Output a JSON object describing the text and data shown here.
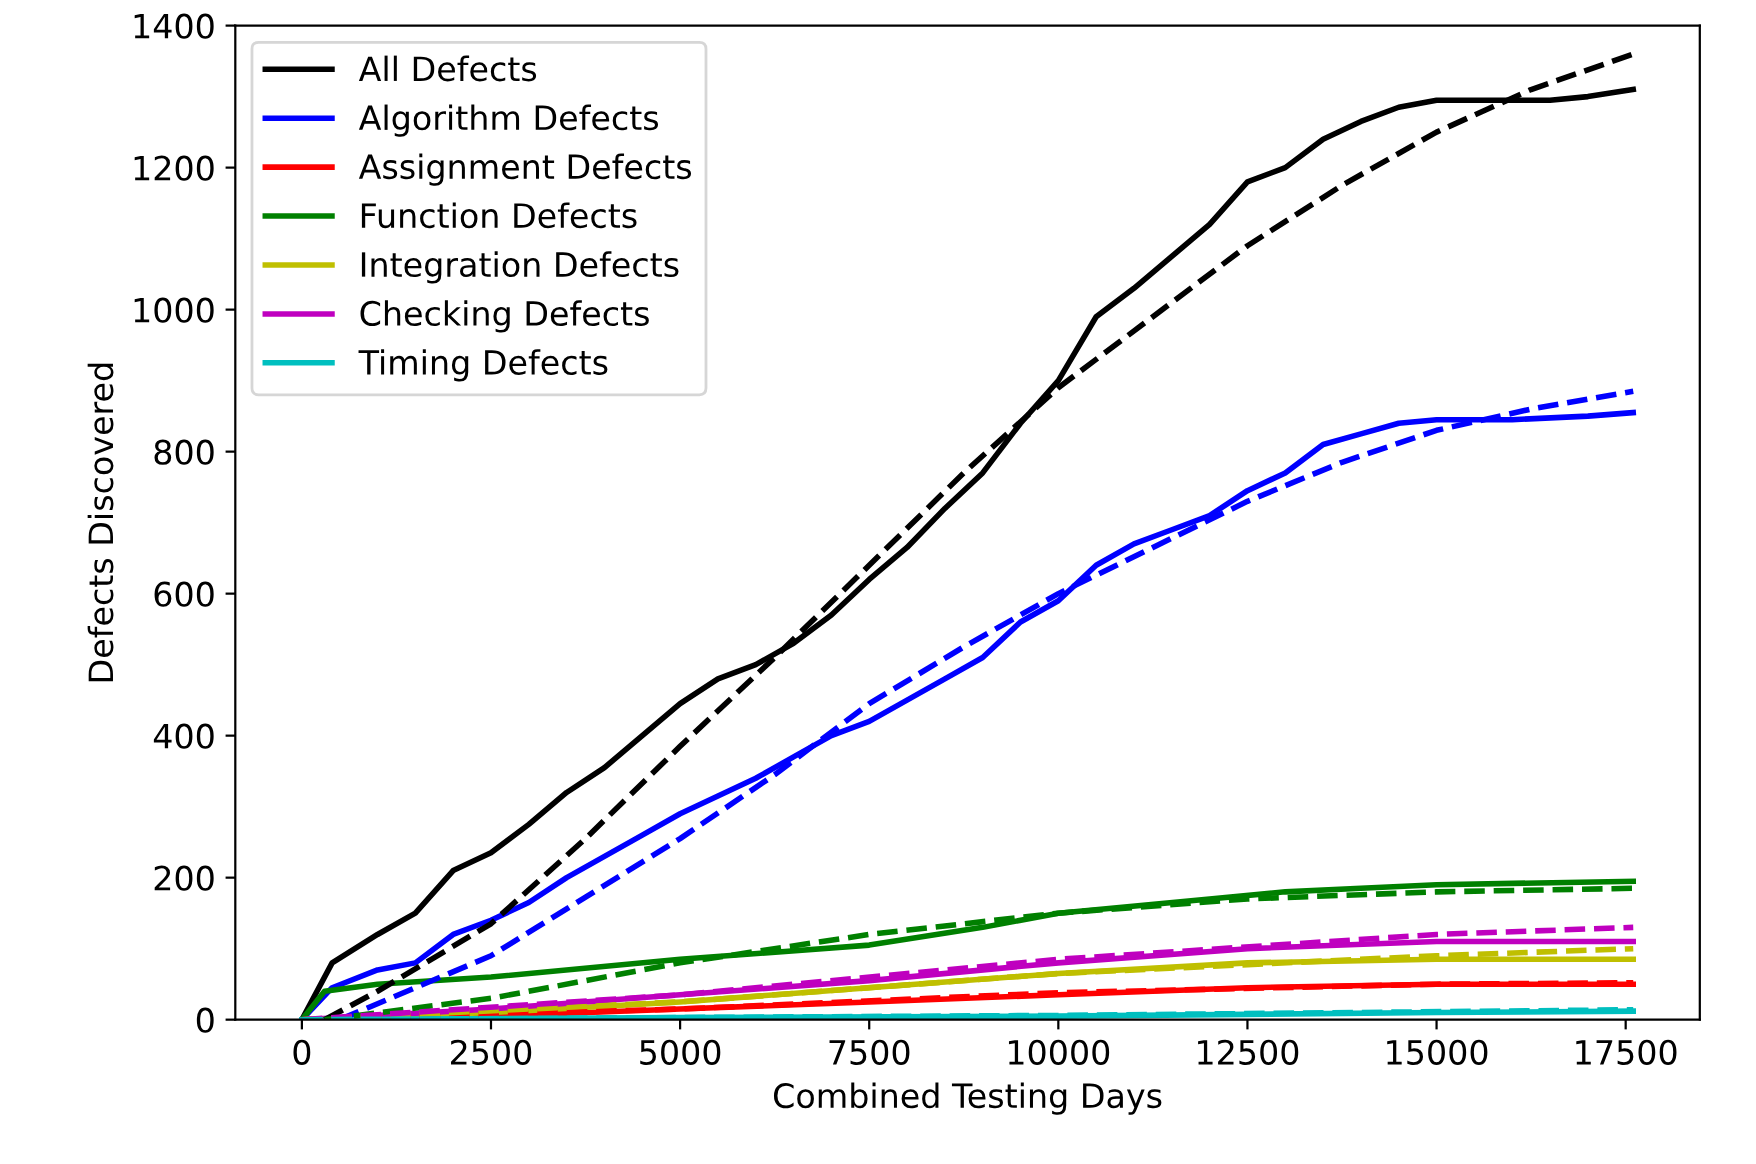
{
  "chart_data": {
    "type": "line",
    "xlabel": "Combined Testing Days",
    "ylabel": "Defects Discovered",
    "xlim": [
      -880,
      18480
    ],
    "ylim": [
      0,
      1400
    ],
    "xticks": [
      0,
      2500,
      5000,
      7500,
      10000,
      12500,
      15000,
      17500
    ],
    "yticks": [
      0,
      200,
      400,
      600,
      800,
      1000,
      1200,
      1400
    ],
    "grid": false,
    "legend": "top left",
    "marker": "none",
    "series": [
      {
        "name": "All Defects",
        "color": "#000000",
        "line_style": "solid",
        "x": [
          0,
          400,
          1000,
          1500,
          2000,
          2500,
          3000,
          3500,
          4000,
          4500,
          5000,
          5500,
          6000,
          6500,
          7000,
          7500,
          8000,
          8500,
          9000,
          9500,
          10000,
          10500,
          11000,
          11500,
          12000,
          12500,
          13000,
          13500,
          14000,
          14500,
          15000,
          16000,
          16500,
          17000,
          17600
        ],
        "values": [
          0,
          80,
          120,
          150,
          210,
          235,
          275,
          320,
          355,
          400,
          445,
          480,
          500,
          530,
          570,
          620,
          665,
          720,
          770,
          840,
          900,
          990,
          1030,
          1075,
          1120,
          1180,
          1200,
          1240,
          1265,
          1285,
          1295,
          1295,
          1295,
          1300,
          1310
        ]
      },
      {
        "name": "Algorithm Defects",
        "color": "#0000ff",
        "line_style": "solid",
        "x": [
          0,
          400,
          1000,
          1500,
          2000,
          2500,
          3000,
          3500,
          4000,
          4500,
          5000,
          5500,
          6000,
          6500,
          7000,
          7500,
          8000,
          8500,
          9000,
          9500,
          10000,
          10500,
          11000,
          11500,
          12000,
          12500,
          13000,
          13500,
          14000,
          14500,
          15000,
          16000,
          17000,
          17600
        ],
        "values": [
          0,
          45,
          70,
          80,
          120,
          140,
          165,
          200,
          230,
          260,
          290,
          315,
          340,
          370,
          400,
          420,
          450,
          480,
          510,
          560,
          590,
          640,
          670,
          690,
          710,
          745,
          770,
          810,
          825,
          840,
          845,
          845,
          850,
          855
        ]
      },
      {
        "name": "Assignment Defects",
        "color": "#ff0000",
        "line_style": "solid",
        "x": [
          0,
          2500,
          5000,
          7500,
          10000,
          12500,
          15000,
          17600
        ],
        "values": [
          0,
          5,
          15,
          25,
          35,
          45,
          50,
          50
        ]
      },
      {
        "name": "Function Defects",
        "color": "#008000",
        "line_style": "solid",
        "x": [
          0,
          300,
          1000,
          2500,
          5000,
          7500,
          9000,
          10000,
          12000,
          13000,
          14000,
          15000,
          17600
        ],
        "values": [
          0,
          40,
          50,
          60,
          85,
          105,
          130,
          150,
          170,
          180,
          185,
          190,
          195
        ]
      },
      {
        "name": "Integration Defects",
        "color": "#bfbf00",
        "line_style": "solid",
        "x": [
          0,
          2500,
          5000,
          7500,
          10000,
          12500,
          15000,
          17600
        ],
        "values": [
          0,
          10,
          25,
          45,
          65,
          80,
          85,
          85
        ]
      },
      {
        "name": "Checking Defects",
        "color": "#bf00bf",
        "line_style": "solid",
        "x": [
          0,
          2500,
          5000,
          7500,
          10000,
          12500,
          15000,
          17600
        ],
        "values": [
          0,
          15,
          35,
          55,
          80,
          100,
          110,
          110
        ]
      },
      {
        "name": "Timing Defects",
        "color": "#00bfbf",
        "line_style": "solid",
        "x": [
          0,
          5000,
          10000,
          15000,
          17600
        ],
        "values": [
          0,
          3,
          5,
          10,
          12
        ]
      },
      {
        "color": "#000000",
        "line_style": "dashed",
        "x": [
          300,
          1000,
          2500,
          3750,
          5000,
          6250,
          7500,
          8750,
          10000,
          11250,
          12500,
          13750,
          15000,
          16250,
          17600
        ],
        "values": [
          0,
          40,
          135,
          255,
          385,
          510,
          640,
          770,
          890,
          990,
          1090,
          1175,
          1250,
          1310,
          1360
        ]
      },
      {
        "color": "#0000ff",
        "line_style": "dashed",
        "x": [
          500,
          2500,
          5000,
          6250,
          7500,
          8750,
          10000,
          11250,
          12500,
          13750,
          15000,
          16250,
          17600
        ],
        "values": [
          0,
          90,
          255,
          345,
          445,
          525,
          600,
          665,
          730,
          785,
          830,
          860,
          885
        ]
      },
      {
        "color": "#ff0000",
        "line_style": "dashed",
        "x": [
          0,
          5000,
          10000,
          15000,
          17600
        ],
        "values": [
          0,
          15,
          38,
          50,
          52
        ]
      },
      {
        "color": "#008000",
        "line_style": "dashed",
        "x": [
          300,
          2500,
          5000,
          7500,
          10000,
          12500,
          15000,
          17600
        ],
        "values": [
          0,
          30,
          80,
          120,
          150,
          170,
          180,
          185
        ]
      },
      {
        "color": "#bfbf00",
        "line_style": "dashed",
        "x": [
          0,
          5000,
          10000,
          15000,
          17600
        ],
        "values": [
          0,
          25,
          65,
          90,
          100
        ]
      },
      {
        "color": "#bf00bf",
        "line_style": "dashed",
        "x": [
          0,
          5000,
          10000,
          15000,
          17600
        ],
        "values": [
          0,
          35,
          85,
          120,
          130
        ]
      },
      {
        "color": "#00bfbf",
        "line_style": "dashed",
        "x": [
          0,
          10000,
          17600
        ],
        "values": [
          0,
          6,
          14
        ]
      }
    ]
  }
}
